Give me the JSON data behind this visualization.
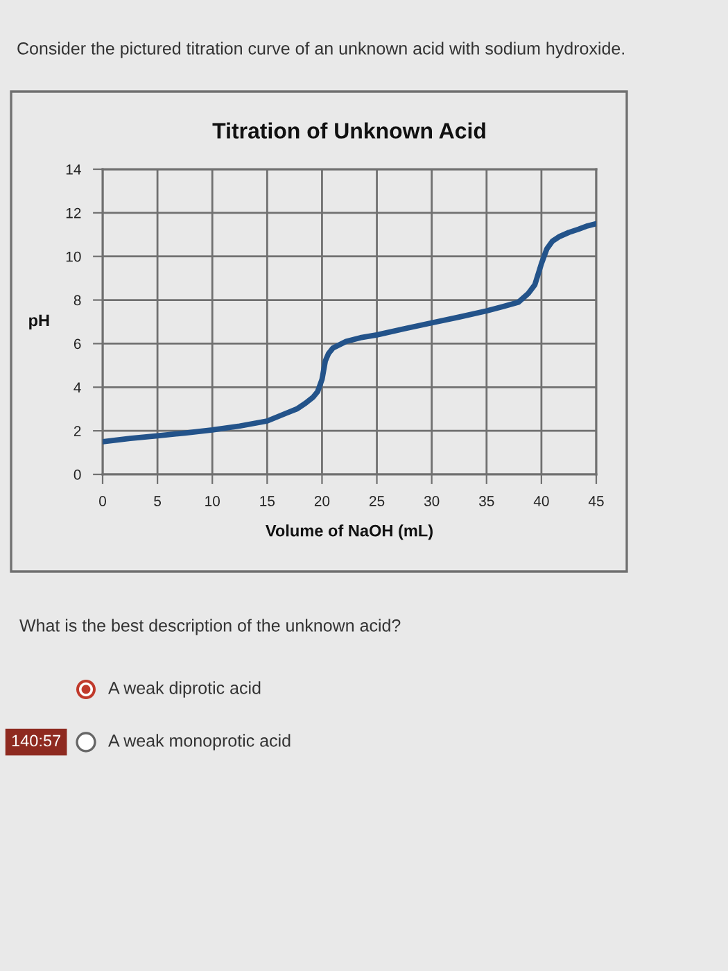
{
  "chart_data": {
    "type": "line",
    "title": "Titration of Unknown Acid",
    "xlabel": "Volume of NaOH (mL)",
    "ylabel": "pH",
    "x": [
      0,
      2.5,
      5,
      7.5,
      10,
      12.5,
      15,
      16.7,
      17.7,
      18.5,
      19.2,
      19.6,
      20,
      20.3,
      20.6,
      21,
      22.2,
      23.5,
      25,
      27.5,
      30,
      32.5,
      35,
      36.5,
      37.9,
      38.8,
      39.4,
      40,
      40.5,
      41,
      41.6,
      42.5,
      43.4,
      44.2,
      45
    ],
    "series": [
      {
        "color": "#23538a",
        "values": [
          1.5,
          1.65,
          1.77,
          1.9,
          2.04,
          2.22,
          2.45,
          2.8,
          3.0,
          3.27,
          3.55,
          3.8,
          4.36,
          5.2,
          5.55,
          5.8,
          6.1,
          6.27,
          6.4,
          6.68,
          6.95,
          7.22,
          7.5,
          7.7,
          7.9,
          8.3,
          8.7,
          9.67,
          10.35,
          10.7,
          10.9,
          11.1,
          11.25,
          11.4,
          11.5
        ]
      }
    ],
    "xlim": [
      0,
      45
    ],
    "ylim": [
      0,
      14
    ],
    "xticks": [
      0,
      5,
      10,
      15,
      20,
      25,
      30,
      35,
      40,
      45
    ],
    "yticks": [
      0,
      2,
      4,
      6,
      8,
      10,
      12,
      14
    ],
    "grid": true,
    "marker": "none",
    "line_style": "solid",
    "annotations": [
      "Consider the pictured titration curve of an unknown acid with sodium hydroxide.",
      "What is the best description of the unknown acid?",
      "A weak diprotic acid",
      "A weak monoprotic acid",
      "140:57"
    ]
  }
}
